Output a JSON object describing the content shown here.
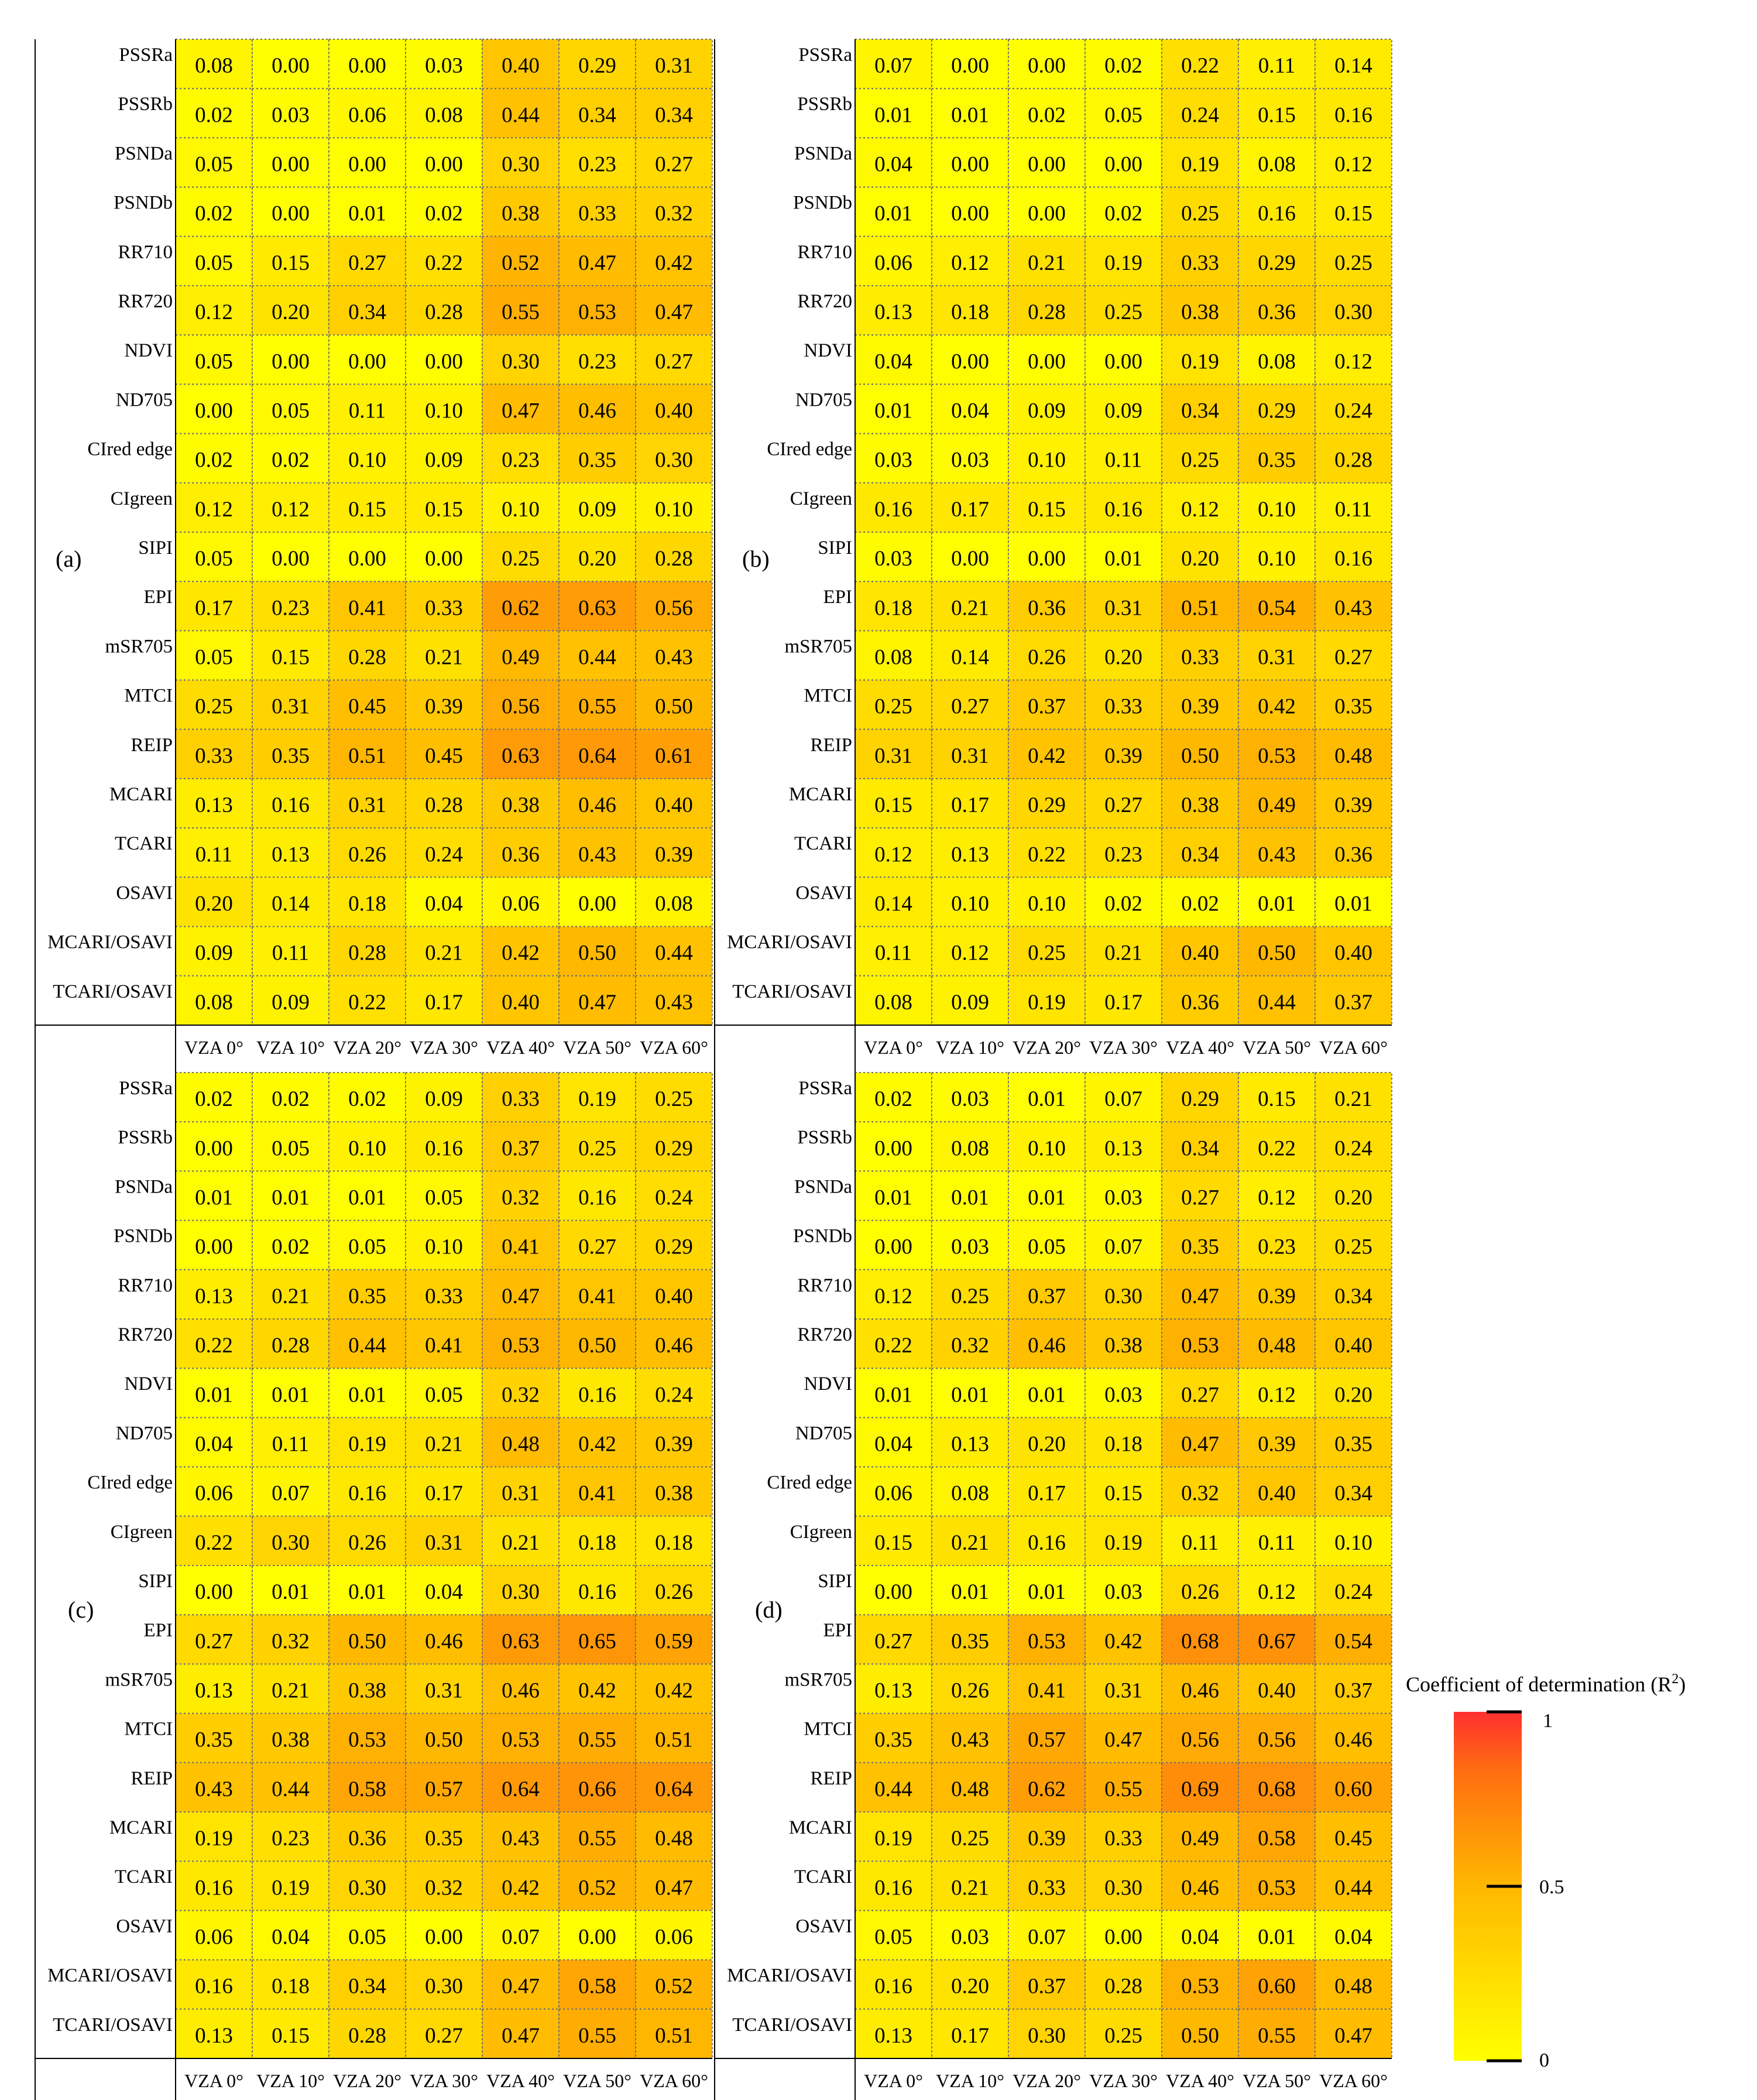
{
  "figure": {
    "colorbar": {
      "title": "Coefficient of determination (R",
      "title_sup": "2",
      "title_end": ")",
      "tick_labels": [
        "1",
        "0.5",
        "0"
      ],
      "ticks": [
        1,
        0.5,
        0
      ],
      "colormap": [
        "#ffff00",
        "#ffb800",
        "#ff6e10",
        "#ff3030"
      ]
    }
  },
  "chart_data": [
    {
      "type": "heatmap",
      "panel_label": "(a)",
      "columns": [
        "VZA 0°",
        "VZA 10°",
        "VZA 20°",
        "VZA 30°",
        "VZA 40°",
        "VZA 50°",
        "VZA 60°"
      ],
      "rows": [
        "PSSRa",
        "PSSRb",
        "PSNDa",
        "PSNDb",
        "RR710",
        "RR720",
        "NDVI",
        "ND705",
        "CIred edge",
        "CIgreen",
        "SIPI",
        "EPI",
        "mSR705",
        "MTCI",
        "REIP",
        "MCARI",
        "TCARI",
        "OSAVI",
        "MCARI/OSAVI",
        "TCARI/OSAVI"
      ],
      "values": [
        [
          "0.08",
          "0.00",
          "0.00",
          "0.03",
          "0.40",
          "0.29",
          "0.31"
        ],
        [
          "0.02",
          "0.03",
          "0.06",
          "0.08",
          "0.44",
          "0.34",
          "0.34"
        ],
        [
          "0.05",
          "0.00",
          "0.00",
          "0.00",
          "0.30",
          "0.23",
          "0.27"
        ],
        [
          "0.02",
          "0.00",
          "0.01",
          "0.02",
          "0.38",
          "0.33",
          "0.32"
        ],
        [
          "0.05",
          "0.15",
          "0.27",
          "0.22",
          "0.52",
          "0.47",
          "0.42"
        ],
        [
          "0.12",
          "0.20",
          "0.34",
          "0.28",
          "0.55",
          "0.53",
          "0.47"
        ],
        [
          "0.05",
          "0.00",
          "0.00",
          "0.00",
          "0.30",
          "0.23",
          "0.27"
        ],
        [
          "0.00",
          "0.05",
          "0.11",
          "0.10",
          "0.47",
          "0.46",
          "0.40"
        ],
        [
          "0.02",
          "0.02",
          "0.10",
          "0.09",
          "0.23",
          "0.35",
          "0.30"
        ],
        [
          "0.12",
          "0.12",
          "0.15",
          "0.15",
          "0.10",
          "0.09",
          "0.10"
        ],
        [
          "0.05",
          "0.00",
          "0.00",
          "0.00",
          "0.25",
          "0.20",
          "0.28"
        ],
        [
          "0.17",
          "0.23",
          "0.41",
          "0.33",
          "0.62",
          "0.63",
          "0.56"
        ],
        [
          "0.05",
          "0.15",
          "0.28",
          "0.21",
          "0.49",
          "0.44",
          "0.43"
        ],
        [
          "0.25",
          "0.31",
          "0.45",
          "0.39",
          "0.56",
          "0.55",
          "0.50"
        ],
        [
          "0.33",
          "0.35",
          "0.51",
          "0.45",
          "0.63",
          "0.64",
          "0.61"
        ],
        [
          "0.13",
          "0.16",
          "0.31",
          "0.28",
          "0.38",
          "0.46",
          "0.40"
        ],
        [
          "0.11",
          "0.13",
          "0.26",
          "0.24",
          "0.36",
          "0.43",
          "0.39"
        ],
        [
          "0.20",
          "0.14",
          "0.18",
          "0.04",
          "0.06",
          "0.00",
          "0.08"
        ],
        [
          "0.09",
          "0.11",
          "0.28",
          "0.21",
          "0.42",
          "0.50",
          "0.44"
        ],
        [
          "0.08",
          "0.09",
          "0.22",
          "0.17",
          "0.40",
          "0.47",
          "0.43"
        ]
      ]
    },
    {
      "type": "heatmap",
      "panel_label": "(b)",
      "columns": [
        "VZA 0°",
        "VZA 10°",
        "VZA 20°",
        "VZA 30°",
        "VZA 40°",
        "VZA 50°",
        "VZA 60°"
      ],
      "rows": [
        "PSSRa",
        "PSSRb",
        "PSNDa",
        "PSNDb",
        "RR710",
        "RR720",
        "NDVI",
        "ND705",
        "CIred edge",
        "CIgreen",
        "SIPI",
        "EPI",
        "mSR705",
        "MTCI",
        "REIP",
        "MCARI",
        "TCARI",
        "OSAVI",
        "MCARI/OSAVI",
        "TCARI/OSAVI"
      ],
      "values": [
        [
          "0.07",
          "0.00",
          "0.00",
          "0.02",
          "0.22",
          "0.11",
          "0.14"
        ],
        [
          "0.01",
          "0.01",
          "0.02",
          "0.05",
          "0.24",
          "0.15",
          "0.16"
        ],
        [
          "0.04",
          "0.00",
          "0.00",
          "0.00",
          "0.19",
          "0.08",
          "0.12"
        ],
        [
          "0.01",
          "0.00",
          "0.00",
          "0.02",
          "0.25",
          "0.16",
          "0.15"
        ],
        [
          "0.06",
          "0.12",
          "0.21",
          "0.19",
          "0.33",
          "0.29",
          "0.25"
        ],
        [
          "0.13",
          "0.18",
          "0.28",
          "0.25",
          "0.38",
          "0.36",
          "0.30"
        ],
        [
          "0.04",
          "0.00",
          "0.00",
          "0.00",
          "0.19",
          "0.08",
          "0.12"
        ],
        [
          "0.01",
          "0.04",
          "0.09",
          "0.09",
          "0.34",
          "0.29",
          "0.24"
        ],
        [
          "0.03",
          "0.03",
          "0.10",
          "0.11",
          "0.25",
          "0.35",
          "0.28"
        ],
        [
          "0.16",
          "0.17",
          "0.15",
          "0.16",
          "0.12",
          "0.10",
          "0.11"
        ],
        [
          "0.03",
          "0.00",
          "0.00",
          "0.01",
          "0.20",
          "0.10",
          "0.16"
        ],
        [
          "0.18",
          "0.21",
          "0.36",
          "0.31",
          "0.51",
          "0.54",
          "0.43"
        ],
        [
          "0.08",
          "0.14",
          "0.26",
          "0.20",
          "0.33",
          "0.31",
          "0.27"
        ],
        [
          "0.25",
          "0.27",
          "0.37",
          "0.33",
          "0.39",
          "0.42",
          "0.35"
        ],
        [
          "0.31",
          "0.31",
          "0.42",
          "0.39",
          "0.50",
          "0.53",
          "0.48"
        ],
        [
          "0.15",
          "0.17",
          "0.29",
          "0.27",
          "0.38",
          "0.49",
          "0.39"
        ],
        [
          "0.12",
          "0.13",
          "0.22",
          "0.23",
          "0.34",
          "0.43",
          "0.36"
        ],
        [
          "0.14",
          "0.10",
          "0.10",
          "0.02",
          "0.02",
          "0.01",
          "0.01"
        ],
        [
          "0.11",
          "0.12",
          "0.25",
          "0.21",
          "0.40",
          "0.50",
          "0.40"
        ],
        [
          "0.08",
          "0.09",
          "0.19",
          "0.17",
          "0.36",
          "0.44",
          "0.37"
        ]
      ]
    },
    {
      "type": "heatmap",
      "panel_label": "(c)",
      "columns": [
        "VZA 0°",
        "VZA 10°",
        "VZA 20°",
        "VZA 30°",
        "VZA 40°",
        "VZA 50°",
        "VZA 60°"
      ],
      "rows": [
        "PSSRa",
        "PSSRb",
        "PSNDa",
        "PSNDb",
        "RR710",
        "RR720",
        "NDVI",
        "ND705",
        "CIred edge",
        "CIgreen",
        "SIPI",
        "EPI",
        "mSR705",
        "MTCI",
        "REIP",
        "MCARI",
        "TCARI",
        "OSAVI",
        "MCARI/OSAVI",
        "TCARI/OSAVI"
      ],
      "values": [
        [
          "0.02",
          "0.02",
          "0.02",
          "0.09",
          "0.33",
          "0.19",
          "0.25"
        ],
        [
          "0.00",
          "0.05",
          "0.10",
          "0.16",
          "0.37",
          "0.25",
          "0.29"
        ],
        [
          "0.01",
          "0.01",
          "0.01",
          "0.05",
          "0.32",
          "0.16",
          "0.24"
        ],
        [
          "0.00",
          "0.02",
          "0.05",
          "0.10",
          "0.41",
          "0.27",
          "0.29"
        ],
        [
          "0.13",
          "0.21",
          "0.35",
          "0.33",
          "0.47",
          "0.41",
          "0.40"
        ],
        [
          "0.22",
          "0.28",
          "0.44",
          "0.41",
          "0.53",
          "0.50",
          "0.46"
        ],
        [
          "0.01",
          "0.01",
          "0.01",
          "0.05",
          "0.32",
          "0.16",
          "0.24"
        ],
        [
          "0.04",
          "0.11",
          "0.19",
          "0.21",
          "0.48",
          "0.42",
          "0.39"
        ],
        [
          "0.06",
          "0.07",
          "0.16",
          "0.17",
          "0.31",
          "0.41",
          "0.38"
        ],
        [
          "0.22",
          "0.30",
          "0.26",
          "0.31",
          "0.21",
          "0.18",
          "0.18"
        ],
        [
          "0.00",
          "0.01",
          "0.01",
          "0.04",
          "0.30",
          "0.16",
          "0.26"
        ],
        [
          "0.27",
          "0.32",
          "0.50",
          "0.46",
          "0.63",
          "0.65",
          "0.59"
        ],
        [
          "0.13",
          "0.21",
          "0.38",
          "0.31",
          "0.46",
          "0.42",
          "0.42"
        ],
        [
          "0.35",
          "0.38",
          "0.53",
          "0.50",
          "0.53",
          "0.55",
          "0.51"
        ],
        [
          "0.43",
          "0.44",
          "0.58",
          "0.57",
          "0.64",
          "0.66",
          "0.64"
        ],
        [
          "0.19",
          "0.23",
          "0.36",
          "0.35",
          "0.43",
          "0.55",
          "0.48"
        ],
        [
          "0.16",
          "0.19",
          "0.30",
          "0.32",
          "0.42",
          "0.52",
          "0.47"
        ],
        [
          "0.06",
          "0.04",
          "0.05",
          "0.00",
          "0.07",
          "0.00",
          "0.06"
        ],
        [
          "0.16",
          "0.18",
          "0.34",
          "0.30",
          "0.47",
          "0.58",
          "0.52"
        ],
        [
          "0.13",
          "0.15",
          "0.28",
          "0.27",
          "0.47",
          "0.55",
          "0.51"
        ]
      ]
    },
    {
      "type": "heatmap",
      "panel_label": "(d)",
      "columns": [
        "VZA 0°",
        "VZA 10°",
        "VZA 20°",
        "VZA 30°",
        "VZA 40°",
        "VZA 50°",
        "VZA 60°"
      ],
      "rows": [
        "PSSRa",
        "PSSRb",
        "PSNDa",
        "PSNDb",
        "RR710",
        "RR720",
        "NDVI",
        "ND705",
        "CIred edge",
        "CIgreen",
        "SIPI",
        "EPI",
        "mSR705",
        "MTCI",
        "REIP",
        "MCARI",
        "TCARI",
        "OSAVI",
        "MCARI/OSAVI",
        "TCARI/OSAVI"
      ],
      "values": [
        [
          "0.02",
          "0.03",
          "0.01",
          "0.07",
          "0.29",
          "0.15",
          "0.21"
        ],
        [
          "0.00",
          "0.08",
          "0.10",
          "0.13",
          "0.34",
          "0.22",
          "0.24"
        ],
        [
          "0.01",
          "0.01",
          "0.01",
          "0.03",
          "0.27",
          "0.12",
          "0.20"
        ],
        [
          "0.00",
          "0.03",
          "0.05",
          "0.07",
          "0.35",
          "0.23",
          "0.25"
        ],
        [
          "0.12",
          "0.25",
          "0.37",
          "0.30",
          "0.47",
          "0.39",
          "0.34"
        ],
        [
          "0.22",
          "0.32",
          "0.46",
          "0.38",
          "0.53",
          "0.48",
          "0.40"
        ],
        [
          "0.01",
          "0.01",
          "0.01",
          "0.03",
          "0.27",
          "0.12",
          "0.20"
        ],
        [
          "0.04",
          "0.13",
          "0.20",
          "0.18",
          "0.47",
          "0.39",
          "0.35"
        ],
        [
          "0.06",
          "0.08",
          "0.17",
          "0.15",
          "0.32",
          "0.40",
          "0.34"
        ],
        [
          "0.15",
          "0.21",
          "0.16",
          "0.19",
          "0.11",
          "0.11",
          "0.10"
        ],
        [
          "0.00",
          "0.01",
          "0.01",
          "0.03",
          "0.26",
          "0.12",
          "0.24"
        ],
        [
          "0.27",
          "0.35",
          "0.53",
          "0.42",
          "0.68",
          "0.67",
          "0.54"
        ],
        [
          "0.13",
          "0.26",
          "0.41",
          "0.31",
          "0.46",
          "0.40",
          "0.37"
        ],
        [
          "0.35",
          "0.43",
          "0.57",
          "0.47",
          "0.56",
          "0.56",
          "0.46"
        ],
        [
          "0.44",
          "0.48",
          "0.62",
          "0.55",
          "0.69",
          "0.68",
          "0.60"
        ],
        [
          "0.19",
          "0.25",
          "0.39",
          "0.33",
          "0.49",
          "0.58",
          "0.45"
        ],
        [
          "0.16",
          "0.21",
          "0.33",
          "0.30",
          "0.46",
          "0.53",
          "0.44"
        ],
        [
          "0.05",
          "0.03",
          "0.07",
          "0.00",
          "0.04",
          "0.01",
          "0.04"
        ],
        [
          "0.16",
          "0.20",
          "0.37",
          "0.28",
          "0.53",
          "0.60",
          "0.48"
        ],
        [
          "0.13",
          "0.17",
          "0.30",
          "0.25",
          "0.50",
          "0.55",
          "0.47"
        ]
      ]
    }
  ]
}
